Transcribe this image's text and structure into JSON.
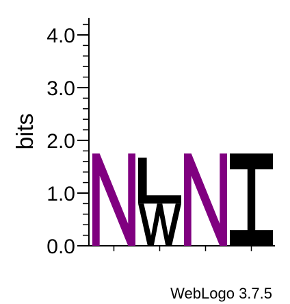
{
  "colors": {
    "polar": "#800080",
    "hydrophobic": "#000000",
    "axis": "#000000",
    "background": "#ffffff"
  },
  "chart_data": {
    "type": "sequence-logo",
    "title": "",
    "xlabel": "",
    "ylabel": "bits",
    "ylim": [
      0,
      4.3
    ],
    "yticks": [
      "0.0",
      "1.0",
      "2.0",
      "3.0",
      "4.0"
    ],
    "ytick_values": [
      0,
      1,
      2,
      3,
      4
    ],
    "minor_tick_step": 0.2,
    "positions": [
      {
        "index": 1,
        "stack": [
          {
            "letter": "N",
            "bits": 1.75,
            "color": "#800080"
          }
        ]
      },
      {
        "index": 2,
        "stack": [
          {
            "letter": "W",
            "bits": 0.8,
            "color": "#000000"
          },
          {
            "letter": "L",
            "bits": 0.87,
            "color": "#000000"
          }
        ]
      },
      {
        "index": 3,
        "stack": [
          {
            "letter": "N",
            "bits": 1.75,
            "color": "#800080"
          }
        ]
      },
      {
        "index": 4,
        "stack": [
          {
            "letter": "I",
            "bits": 1.75,
            "color": "#000000"
          }
        ]
      }
    ]
  },
  "footer": {
    "credit": "WebLogo 3.7.5"
  }
}
